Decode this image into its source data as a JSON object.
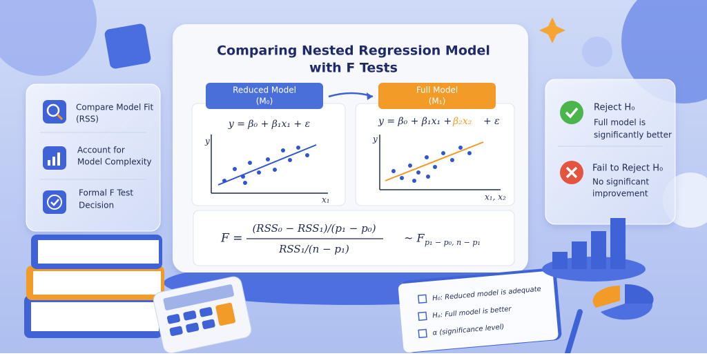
{
  "header": {
    "title_line1": "Comparing Nested Regression Model",
    "title_line2": "with F Tests"
  },
  "left_panel": {
    "items": [
      {
        "line1": "Compare Model Fit",
        "line2": "(RSS)"
      },
      {
        "line1": "Account for",
        "line2": "Model Complexity"
      },
      {
        "line1": "Formal F Test",
        "line2": "Decision"
      }
    ]
  },
  "models": [
    {
      "name": "Reduced Model",
      "symbol": "(M₀)",
      "equation": "y = β₀ + β₁x₁ + ε",
      "y_label": "y",
      "x_label": "x₁"
    },
    {
      "name": "Full Model",
      "symbol": "(M₁)",
      "equation_base": "y = β₀ + β₁x₁ +",
      "equation_added": "β₂x₂",
      "equation_end": "+ ε",
      "y_label": "y",
      "x_label": "x₁, x₂"
    }
  ],
  "formula": {
    "lhs": "F =",
    "numerator": "(RSS₀ − RSS₁)/(p₁ − p₀)",
    "denominator": "RSS₁/(n − p₁)",
    "distribution": "~ F",
    "distribution_sub": "p₁ − p₀, n − p₁"
  },
  "right_panel": {
    "items": [
      {
        "title": "Reject H₀",
        "line1": "Full model is",
        "line2": "significantly better"
      },
      {
        "title": "Fail to Reject H₀",
        "line1": "No significant",
        "line2": "improvement"
      }
    ]
  },
  "notepad": {
    "items": [
      "H₀: Reduced model is adequate",
      "Hₐ: Full model is better",
      "α (significance level)"
    ]
  }
}
